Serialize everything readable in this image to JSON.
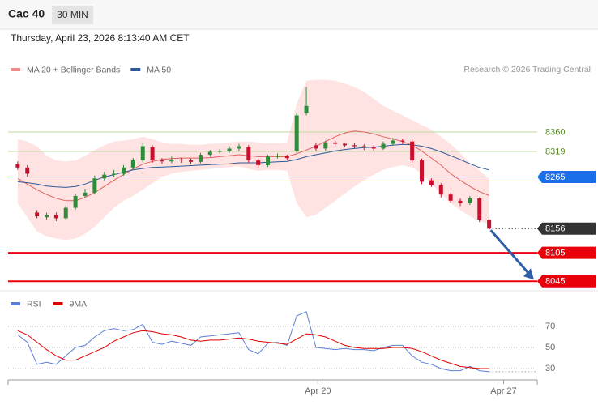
{
  "chart_data": {
    "type": "candlestick",
    "title": "Cac 40",
    "interval": "30 MIN",
    "subtitle": "Thursday, April 23, 2026 8:13:40 AM CET",
    "credit": "Research © 2026 Trading Central",
    "xlim": [
      -1,
      54
    ],
    "xticks": [
      {
        "value": 31.2,
        "label": "Apr 20"
      },
      {
        "value": 50.5,
        "label": "Apr 27"
      }
    ],
    "ylim": [
      8030,
      8475
    ],
    "up_color": "#2e8b3a",
    "down_color": "#c8102e",
    "ohlc": {
      "open": [
        8292,
        8285,
        8190,
        8180,
        8185,
        8178,
        8200,
        8225,
        8232,
        8262,
        8270,
        8272,
        8285,
        8300,
        8328,
        8300,
        8298,
        8302,
        8300,
        8297,
        8312,
        8318,
        8320,
        8325,
        8328,
        8300,
        8290,
        8308,
        8310,
        8320,
        8400,
        8332,
        8325,
        8338,
        8335,
        8332,
        8330,
        8328,
        8325,
        8335,
        8342,
        8340,
        8300,
        8258,
        8248,
        8228,
        8215,
        8210,
        8220,
        8175
      ],
      "high": [
        8298,
        8290,
        8195,
        8190,
        8190,
        8205,
        8230,
        8240,
        8268,
        8276,
        8280,
        8290,
        8305,
        8336,
        8332,
        8305,
        8308,
        8306,
        8304,
        8316,
        8322,
        8324,
        8330,
        8335,
        8332,
        8304,
        8312,
        8315,
        8312,
        8400,
        8455,
        8338,
        8342,
        8342,
        8338,
        8336,
        8334,
        8332,
        8340,
        8348,
        8346,
        8344,
        8304,
        8262,
        8252,
        8232,
        8220,
        8225,
        8222,
        8178
      ],
      "low": [
        8280,
        8265,
        8178,
        8175,
        8172,
        8174,
        8196,
        8220,
        8228,
        8258,
        8265,
        8268,
        8280,
        8296,
        8295,
        8292,
        8294,
        8295,
        8292,
        8294,
        8308,
        8314,
        8316,
        8320,
        8295,
        8285,
        8286,
        8304,
        8300,
        8316,
        8395,
        8320,
        8320,
        8330,
        8328,
        8325,
        8322,
        8320,
        8322,
        8332,
        8335,
        8295,
        8250,
        8244,
        8222,
        8210,
        8204,
        8206,
        8170,
        8152
      ],
      "close": [
        8285,
        8272,
        8182,
        8185,
        8178,
        8200,
        8225,
        8232,
        8262,
        8270,
        8272,
        8285,
        8300,
        8330,
        8300,
        8298,
        8302,
        8300,
        8297,
        8312,
        8318,
        8320,
        8325,
        8330,
        8300,
        8290,
        8308,
        8310,
        8305,
        8395,
        8415,
        8325,
        8338,
        8335,
        8332,
        8330,
        8328,
        8325,
        8335,
        8342,
        8340,
        8300,
        8255,
        8248,
        8228,
        8215,
        8210,
        8220,
        8175,
        8156
      ]
    },
    "overlays": [
      {
        "name": "MA 20 + Bollinger Bands",
        "color": "#e06060",
        "swatch": "#f28a8a",
        "band_color": "#ffd9d9",
        "values": [
          8262,
          8250,
          8238,
          8228,
          8220,
          8215,
          8215,
          8222,
          8232,
          8245,
          8258,
          8270,
          8282,
          8292,
          8298,
          8302,
          8304,
          8305,
          8305,
          8305,
          8306,
          8308,
          8310,
          8312,
          8310,
          8308,
          8308,
          8308,
          8308,
          8314,
          8322,
          8330,
          8340,
          8350,
          8358,
          8362,
          8360,
          8356,
          8350,
          8345,
          8340,
          8332,
          8320,
          8305,
          8290,
          8272,
          8258,
          8245,
          8234,
          8226
        ],
        "upper": [
          8345,
          8340,
          8330,
          8310,
          8300,
          8298,
          8300,
          8310,
          8322,
          8332,
          8340,
          8342,
          8345,
          8350,
          8345,
          8338,
          8335,
          8335,
          8333,
          8333,
          8335,
          8336,
          8338,
          8340,
          8340,
          8338,
          8336,
          8336,
          8338,
          8420,
          8468,
          8470,
          8470,
          8468,
          8462,
          8455,
          8445,
          8430,
          8415,
          8405,
          8395,
          8385,
          8375,
          8365,
          8350,
          8335,
          8315,
          8295,
          8278,
          8262
        ],
        "lower": [
          8210,
          8180,
          8150,
          8140,
          8135,
          8132,
          8135,
          8145,
          8160,
          8180,
          8200,
          8215,
          8225,
          8238,
          8252,
          8265,
          8272,
          8276,
          8278,
          8280,
          8282,
          8284,
          8286,
          8288,
          8282,
          8278,
          8280,
          8280,
          8278,
          8210,
          8180,
          8185,
          8200,
          8215,
          8230,
          8245,
          8258,
          8270,
          8280,
          8286,
          8290,
          8285,
          8272,
          8250,
          8230,
          8210,
          8195,
          8182,
          8172,
          8165
        ]
      },
      {
        "name": "MA 50",
        "color": "#2d5a9a",
        "swatch": "#2d5a9a",
        "values": [
          8255,
          8253,
          8250,
          8246,
          8244,
          8243,
          8245,
          8250,
          8258,
          8265,
          8270,
          8275,
          8280,
          8283,
          8285,
          8286,
          8287,
          8288,
          8289,
          8290,
          8291,
          8292,
          8293,
          8295,
          8295,
          8295,
          8296,
          8297,
          8298,
          8302,
          8308,
          8312,
          8316,
          8320,
          8323,
          8325,
          8327,
          8328,
          8330,
          8332,
          8334,
          8333,
          8330,
          8325,
          8318,
          8310,
          8302,
          8293,
          8285,
          8280
        ]
      }
    ],
    "levels": [
      {
        "value": 8360,
        "color": "#bcd8a0",
        "label_color": "#5a8a2a",
        "box": false,
        "line": "solid",
        "width": 1
      },
      {
        "value": 8319,
        "color": "#bcd8a0",
        "label_color": "#5a8a2a",
        "box": false,
        "line": "solid",
        "width": 1
      },
      {
        "value": 8265,
        "color": "#1a6fe8",
        "label_color": "#ffffff",
        "box": true,
        "line": "solid",
        "width": 1
      },
      {
        "value": 8156,
        "color": "#333333",
        "label_color": "#ffffff",
        "box": true,
        "line": "dotted",
        "width": 1
      },
      {
        "value": 8105,
        "color": "#e8000b",
        "label_color": "#ffffff",
        "box": true,
        "line": "solid",
        "width": 2
      },
      {
        "value": 8045,
        "color": "#e8000b",
        "label_color": "#ffffff",
        "box": true,
        "line": "solid",
        "width": 2
      }
    ],
    "rsi": {
      "ylim": [
        20,
        88
      ],
      "yticks": [
        30,
        50,
        70
      ],
      "grid": true,
      "series": [
        {
          "name": "RSI",
          "color": "#5b7fd6",
          "values": [
            62,
            55,
            34,
            36,
            34,
            42,
            50,
            52,
            60,
            66,
            68,
            66,
            67,
            72,
            55,
            53,
            56,
            54,
            52,
            60,
            61,
            62,
            63,
            64,
            48,
            44,
            54,
            55,
            52,
            80,
            84,
            50,
            49,
            48,
            49,
            48,
            48,
            47,
            50,
            52,
            52,
            42,
            36,
            34,
            30,
            28,
            28,
            32,
            28,
            27
          ]
        },
        {
          "name": "9MA",
          "color": "#e00000",
          "values": [
            66,
            62,
            55,
            48,
            42,
            38,
            38,
            42,
            46,
            50,
            56,
            60,
            64,
            66,
            65,
            63,
            62,
            60,
            57,
            56,
            57,
            57,
            58,
            59,
            58,
            56,
            55,
            54,
            53,
            58,
            63,
            62,
            60,
            56,
            52,
            50,
            49,
            49,
            49,
            50,
            50,
            49,
            46,
            42,
            38,
            35,
            32,
            31,
            30,
            30
          ]
        }
      ]
    }
  }
}
